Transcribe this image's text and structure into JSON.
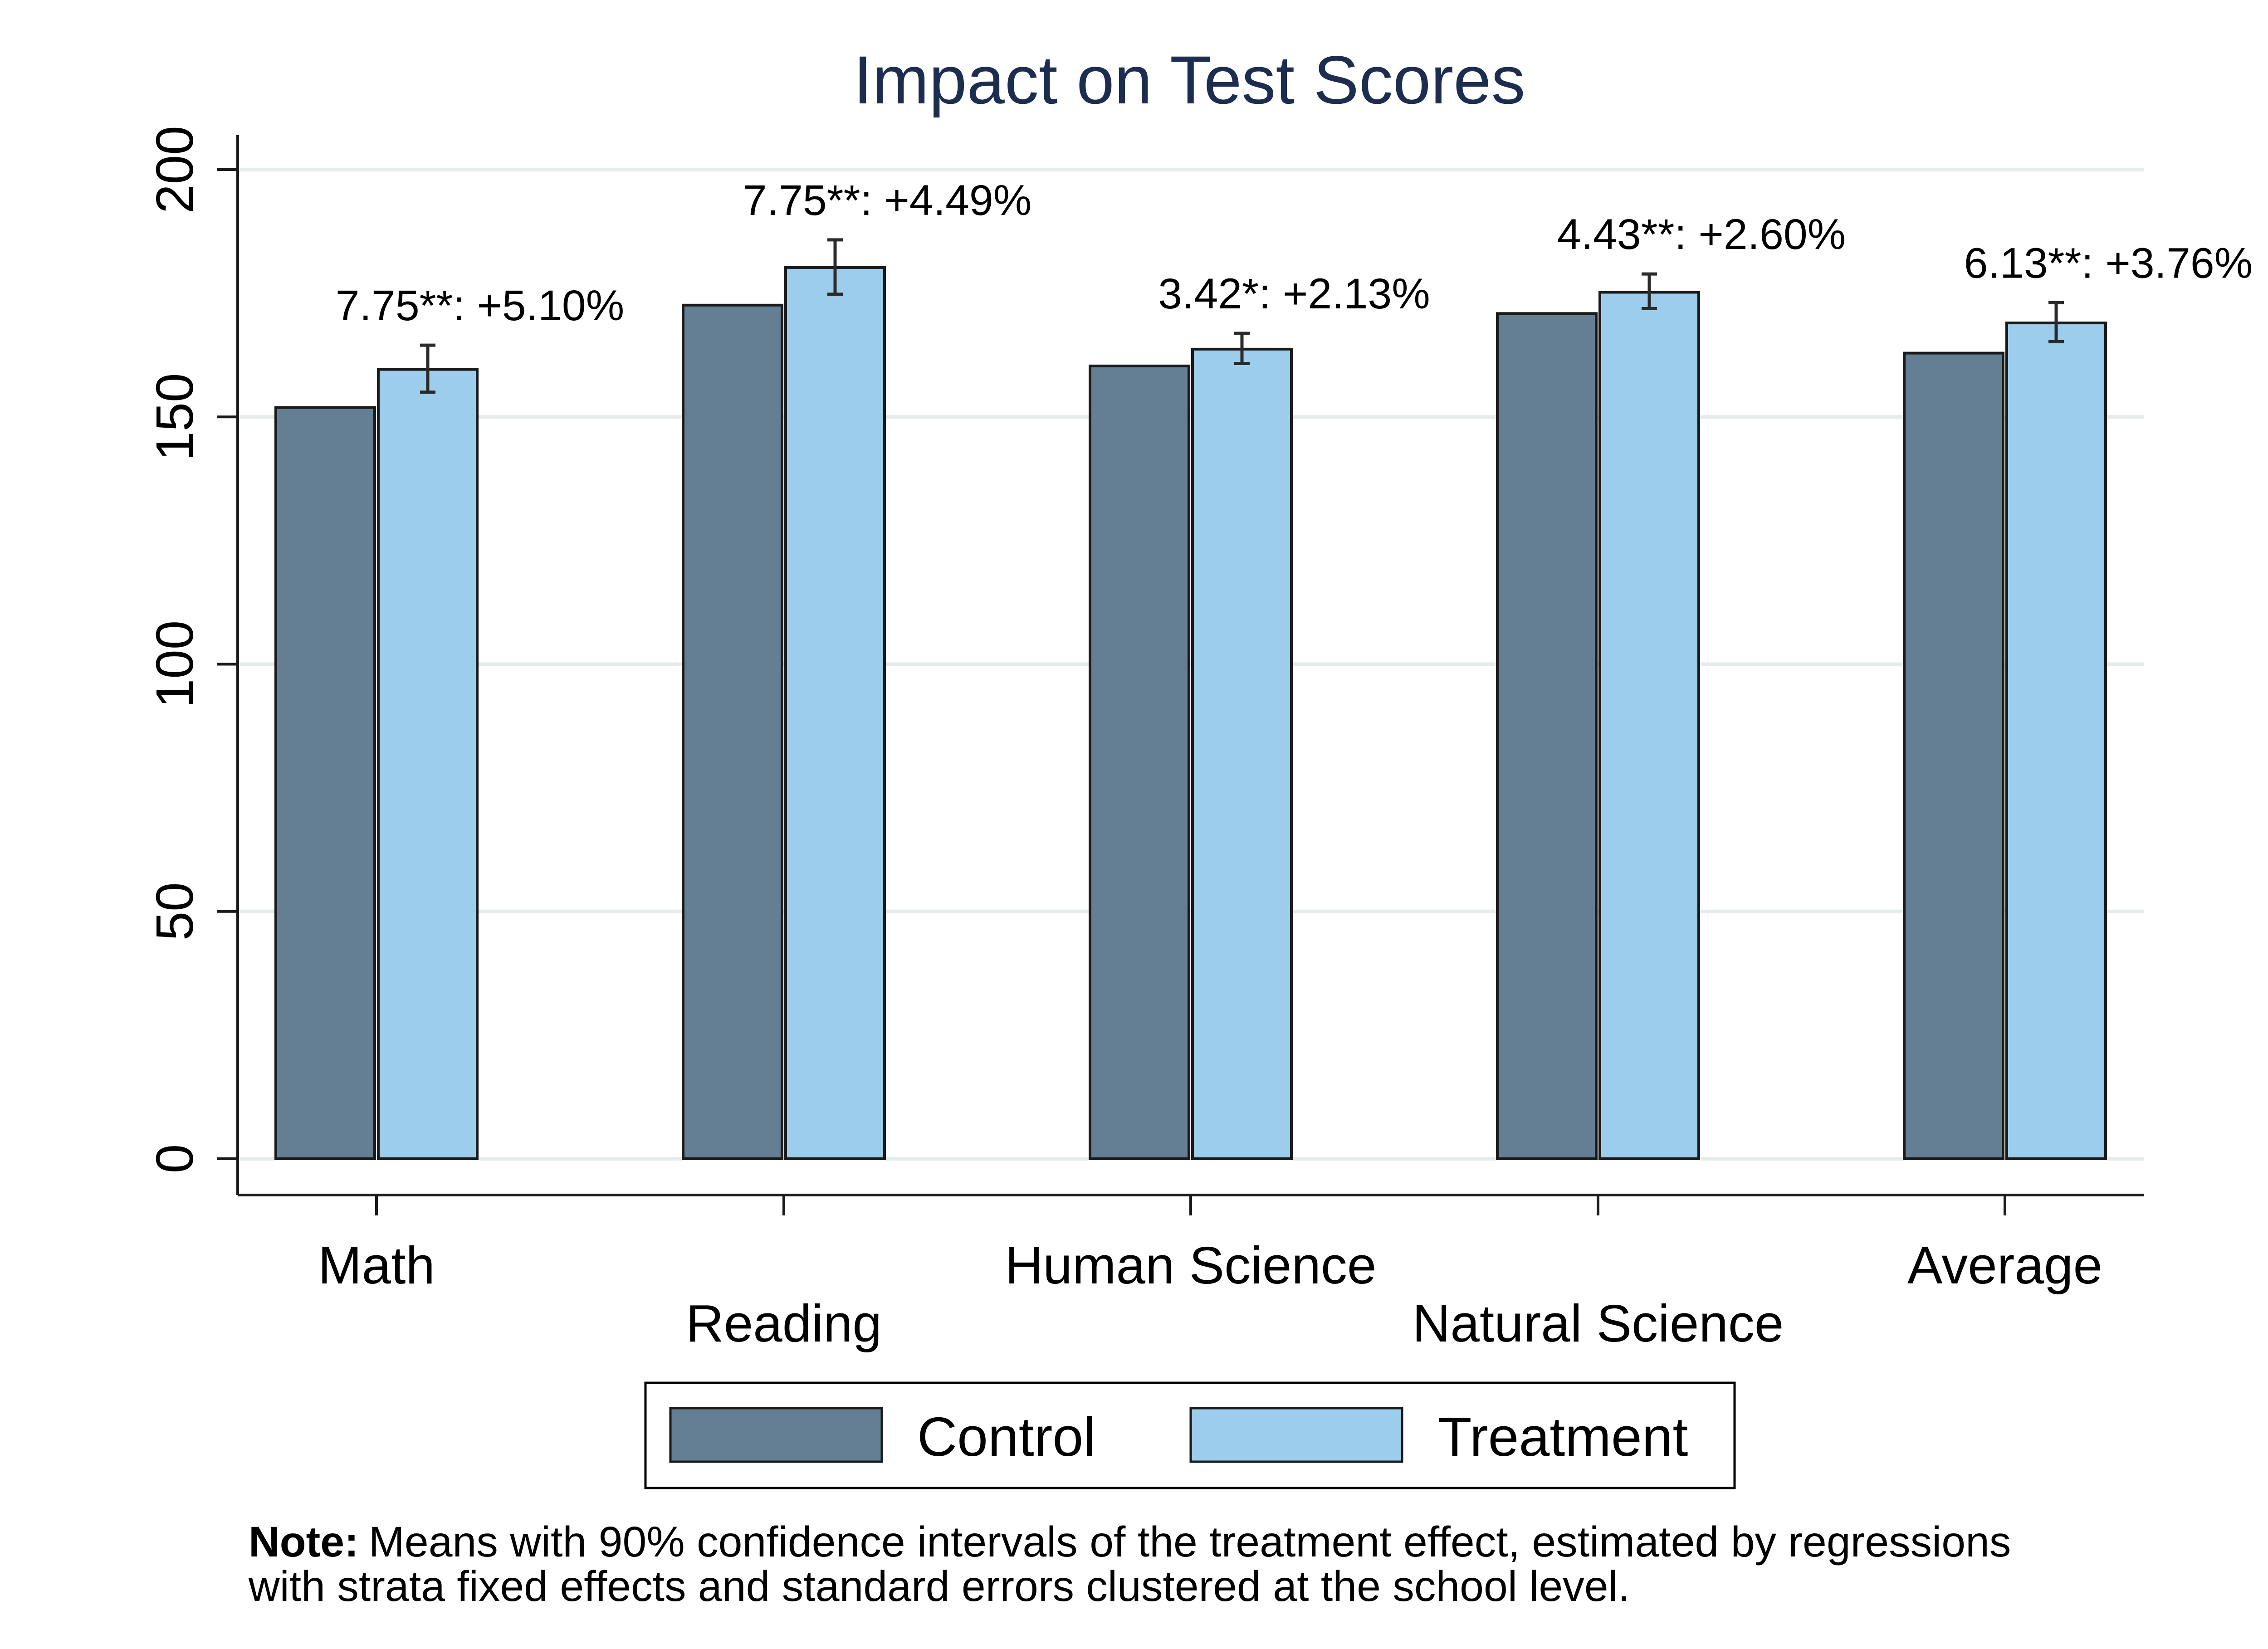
{
  "chart_data": {
    "type": "bar",
    "title": "Impact on Test Scores",
    "categories": [
      "Math",
      "Reading",
      "Human Science",
      "Natural Science",
      "Average"
    ],
    "series": [
      {
        "name": "Control",
        "values": [
          151.9,
          172.6,
          160.3,
          170.9,
          162.9
        ]
      },
      {
        "name": "Treatment",
        "values": [
          159.6,
          180.2,
          163.7,
          175.2,
          169.0
        ]
      }
    ],
    "error_bars": {
      "series": "Treatment",
      "low": [
        155.0,
        174.8,
        160.8,
        171.9,
        165.2
      ],
      "high": [
        164.5,
        185.8,
        166.9,
        178.9,
        173.1
      ]
    },
    "annotations": [
      "7.75**: +5.10%",
      "7.75**: +4.49%",
      "3.42*: +2.13%",
      "4.43**: +2.60%",
      "6.13**: +3.76%"
    ],
    "yticks": [
      0,
      50,
      100,
      150,
      200
    ],
    "ylim": [
      0,
      200
    ],
    "grid": true,
    "legend": "bottom",
    "colors": {
      "Control": "#647f93",
      "Treatment": "#9dcdec",
      "title": "#1d2d4f",
      "grid": "#e5ece9",
      "outline": "#1a1a1a"
    },
    "note_bold": "Note:",
    "note_text_1": "Means with 90% confidence intervals of the treatment effect, estimated by regressions",
    "note_text_2": "with strata fixed effects and standard errors clustered at the school level."
  }
}
